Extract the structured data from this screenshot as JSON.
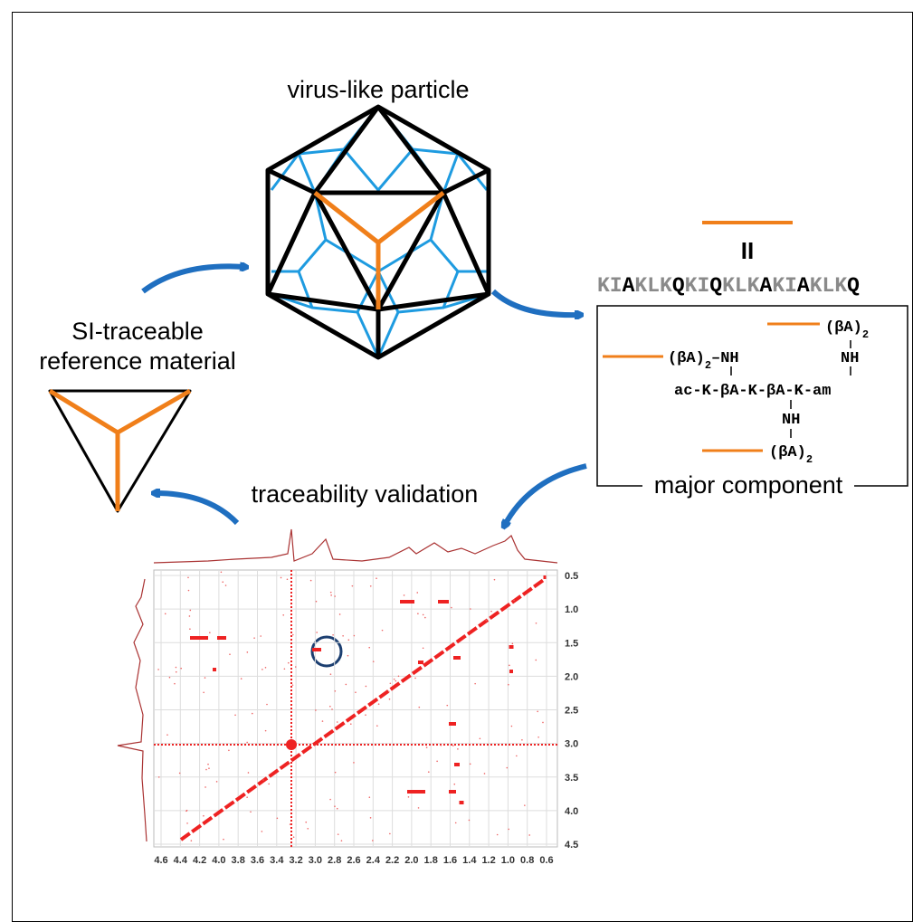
{
  "labels": {
    "virus_like_particle": "virus-like particle",
    "reference_line1": "SI-traceable",
    "reference_line2": "reference material",
    "traceability_validation": "traceability validation",
    "major_component": "major component",
    "equivalence": "II"
  },
  "sequence": [
    {
      "text": "KI",
      "bold": false
    },
    {
      "text": "A",
      "bold": true
    },
    {
      "text": "KLK",
      "bold": false
    },
    {
      "text": "Q",
      "bold": true
    },
    {
      "text": "KI",
      "bold": false
    },
    {
      "text": "Q",
      "bold": true
    },
    {
      "text": "KLK",
      "bold": false
    },
    {
      "text": "A",
      "bold": true
    },
    {
      "text": "KI",
      "bold": false
    },
    {
      "text": "A",
      "bold": true
    },
    {
      "text": "KLK",
      "bold": false
    },
    {
      "text": "Q",
      "bold": true
    }
  ],
  "structure": {
    "group_top": {
      "text": "(βA)",
      "sub": "2"
    },
    "nh_top": "NH",
    "group_left": {
      "text": "(βA)",
      "sub": "2",
      "tail": "–NH"
    },
    "backbone": "ac-K-βA-K-βA-K-am",
    "nh_bottom": "NH",
    "group_bottom": {
      "text": "(βA)",
      "sub": "2"
    }
  },
  "nmr": {
    "xticks": [
      "4.6",
      "4.4",
      "4.2",
      "4.0",
      "3.8",
      "3.6",
      "3.4",
      "3.2",
      "3.0",
      "2.8",
      "2.6",
      "2.4",
      "2.2",
      "2.0",
      "1.8",
      "1.6",
      "1.4",
      "1.2",
      "1.0",
      "0.8",
      "0.6"
    ],
    "yticks": [
      "0.5",
      "1.0",
      "1.5",
      "2.0",
      "2.5",
      "3.0",
      "3.5",
      "4.0",
      "4.5"
    ]
  }
}
